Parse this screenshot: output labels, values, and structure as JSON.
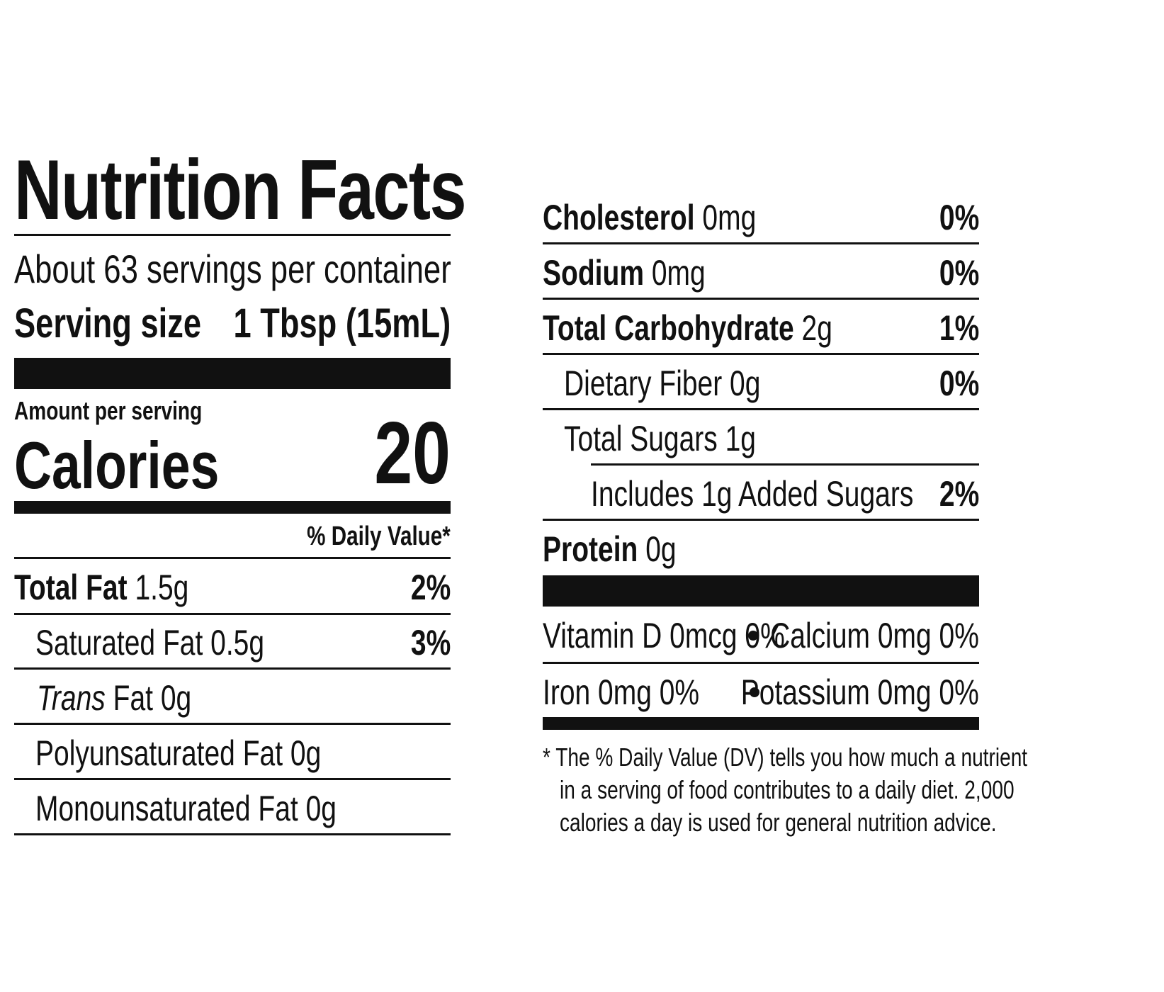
{
  "title": "Nutrition Facts",
  "servings_per_container": "About 63 servings per container",
  "serving_size": {
    "label": "Serving size",
    "value": "1 Tbsp (15mL)"
  },
  "amount_per_serving": "Amount per serving",
  "calories": {
    "label": "Calories",
    "value": "20"
  },
  "daily_value_header": "% Daily Value*",
  "left_nutrients": {
    "total_fat": {
      "label": "Total Fat",
      "amount": "1.5g",
      "dv": "2%"
    },
    "saturated_fat": {
      "label": "Saturated Fat 0.5g",
      "dv": "3%"
    },
    "trans_fat": {
      "label_italic": "Trans",
      "label": "Fat 0g"
    },
    "polyunsaturated_fat": {
      "label": "Polyunsaturated Fat 0g"
    },
    "monounsaturated_fat": {
      "label": "Monounsaturated Fat 0g"
    }
  },
  "right_nutrients": {
    "cholesterol": {
      "label": "Cholesterol",
      "amount": "0mg",
      "dv": "0%"
    },
    "sodium": {
      "label": "Sodium",
      "amount": "0mg",
      "dv": "0%"
    },
    "total_carbohydrate": {
      "label": "Total Carbohydrate",
      "amount": "2g",
      "dv": "1%"
    },
    "dietary_fiber": {
      "label": "Dietary Fiber 0g",
      "dv": "0%"
    },
    "total_sugars": {
      "label": "Total Sugars 1g"
    },
    "added_sugars": {
      "label": "Includes 1g Added Sugars",
      "dv": "2%"
    },
    "protein": {
      "label": "Protein",
      "amount": "0g"
    }
  },
  "micronutrients": {
    "vitamin_d": "Vitamin D 0mcg 0%",
    "calcium": "Calcium 0mg 0%",
    "iron": "Iron 0mg 0%",
    "potassium": "Potassium 0mg 0%"
  },
  "footnote": {
    "line1": "* The % Daily Value (DV) tells you how much a nutrient",
    "line2": "in a serving of food contributes to a daily diet. 2,000",
    "line3": "calories a day is used for general nutrition advice."
  }
}
